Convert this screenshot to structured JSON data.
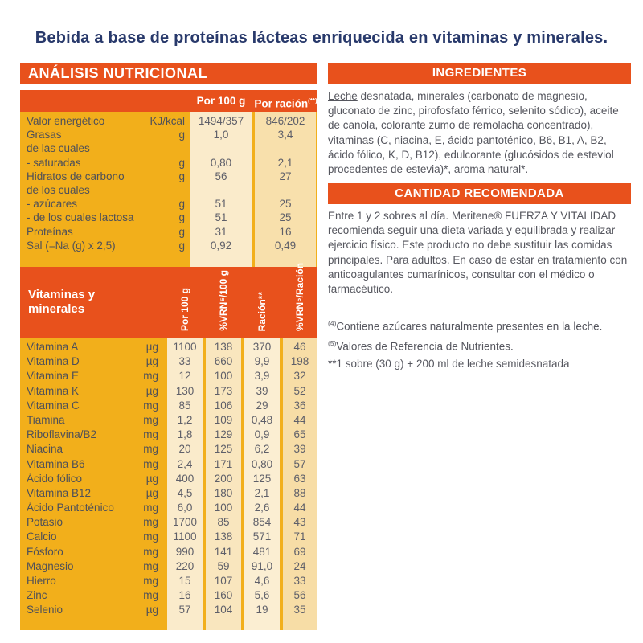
{
  "title": "Bebida a base de proteínas lácteas enriquecida en vitaminas y minerales.",
  "colors": {
    "orange": "#E8511C",
    "yellow": "#F2AF1B",
    "navy": "#28396B",
    "cream": "#FAEBCB",
    "text_gray": "#55565E"
  },
  "analysis": {
    "header": "ANÁLISIS NUTRICIONAL",
    "col_headers": {
      "per100": "Por 100 g",
      "racion": "Por ración",
      "racion_sup": "(**)"
    },
    "rows": [
      {
        "label": "Valor energético",
        "unit": "KJ/kcal",
        "per100": "1494/357",
        "racion": "846/202"
      },
      {
        "label": "Grasas",
        "unit": "g",
        "per100": "1,0",
        "racion": "3,4"
      },
      {
        "label": "de las cuales",
        "unit": "",
        "per100": "",
        "racion": ""
      },
      {
        "label": "- saturadas",
        "unit": "g",
        "per100": "0,80",
        "racion": "2,1"
      },
      {
        "label": "Hidratos de carbono",
        "unit": "g",
        "per100": "56",
        "racion": "27"
      },
      {
        "label": "de los cuales",
        "unit": "",
        "per100": "",
        "racion": ""
      },
      {
        "label": "- azúcares",
        "unit": "g",
        "per100": "51",
        "racion": "25"
      },
      {
        "label": "- de los cuales lactosa",
        "unit": "g",
        "per100": "51",
        "racion": "25"
      },
      {
        "label": "Proteínas",
        "unit": "g",
        "per100": "31",
        "racion": "16"
      },
      {
        "label": "Sal (=Na (g) x 2,5)",
        "unit": "g",
        "per100": "0,92",
        "racion": "0,49"
      }
    ],
    "vitamins_header": {
      "title_line1": "Vitaminas y",
      "title_line2": "minerales",
      "cols": [
        "Por 100 g",
        "%VRN⁵/100 g",
        "Ración**",
        "%VRN⁵/Ración"
      ]
    },
    "vitamin_rows": [
      {
        "label": "Vitamina A",
        "unit": "µg",
        "per100": "1100",
        "vrn100": "138",
        "racion": "370",
        "vrnracion": "46"
      },
      {
        "label": "Vitamina D",
        "unit": "µg",
        "per100": "33",
        "vrn100": "660",
        "racion": "9,9",
        "vrnracion": "198"
      },
      {
        "label": "Vitamina E",
        "unit": "mg",
        "per100": "12",
        "vrn100": "100",
        "racion": "3,9",
        "vrnracion": "32"
      },
      {
        "label": "Vitamina K",
        "unit": "µg",
        "per100": "130",
        "vrn100": "173",
        "racion": "39",
        "vrnracion": "52"
      },
      {
        "label": "Vitamina C",
        "unit": "mg",
        "per100": "85",
        "vrn100": "106",
        "racion": "29",
        "vrnracion": "36"
      },
      {
        "label": "Tiamina",
        "unit": "mg",
        "per100": "1,2",
        "vrn100": "109",
        "racion": "0,48",
        "vrnracion": "44"
      },
      {
        "label": "Riboflavina/B2",
        "unit": "mg",
        "per100": "1,8",
        "vrn100": "129",
        "racion": "0,9",
        "vrnracion": "65"
      },
      {
        "label": "Niacina",
        "unit": "mg",
        "per100": "20",
        "vrn100": "125",
        "racion": "6,2",
        "vrnracion": "39"
      },
      {
        "label": "Vitamina B6",
        "unit": "mg",
        "per100": "2,4",
        "vrn100": "171",
        "racion": "0,80",
        "vrnracion": "57"
      },
      {
        "label": "Ácido fólico",
        "unit": "µg",
        "per100": "400",
        "vrn100": "200",
        "racion": "125",
        "vrnracion": "63"
      },
      {
        "label": "Vitamina B12",
        "unit": "µg",
        "per100": "4,5",
        "vrn100": "180",
        "racion": "2,1",
        "vrnracion": "88"
      },
      {
        "label": "Ácido Pantoténico",
        "unit": "mg",
        "per100": "6,0",
        "vrn100": "100",
        "racion": "2,6",
        "vrnracion": "44"
      },
      {
        "label": "Potasio",
        "unit": "mg",
        "per100": "1700",
        "vrn100": "85",
        "racion": "854",
        "vrnracion": "43"
      },
      {
        "label": "Calcio",
        "unit": "mg",
        "per100": "1100",
        "vrn100": "138",
        "racion": "571",
        "vrnracion": "71"
      },
      {
        "label": "Fósforo",
        "unit": "mg",
        "per100": "990",
        "vrn100": "141",
        "racion": "481",
        "vrnracion": "69"
      },
      {
        "label": "Magnesio",
        "unit": "mg",
        "per100": "220",
        "vrn100": "59",
        "racion": "91,0",
        "vrnracion": "24"
      },
      {
        "label": "Hierro",
        "unit": "mg",
        "per100": "15",
        "vrn100": "107",
        "racion": "4,6",
        "vrnracion": "33"
      },
      {
        "label": "Zinc",
        "unit": "mg",
        "per100": "16",
        "vrn100": "160",
        "racion": "5,6",
        "vrnracion": "56"
      },
      {
        "label": "Selenio",
        "unit": "µg",
        "per100": "57",
        "vrn100": "104",
        "racion": "19",
        "vrnracion": "35"
      }
    ]
  },
  "ingredients": {
    "header": "INGREDIENTES",
    "allergen": "Leche",
    "text": " desnatada, minerales (carbonato de magnesio, gluconato de zinc, pirofosfato férrico, selenito sódico), aceite de canola, colorante zumo de remolacha concentrado), vitaminas (C, niacina, E, ácido pantoténico, B6, B1, A, B2, ácido fólico, K, D, B12), edulcorante (glucósidos de esteviol procedentes de estevia)*, aroma natural*."
  },
  "recommended": {
    "header": "CANTIDAD RECOMENDADA",
    "text": "Entre 1 y 2 sobres al día. Meritene® FUERZA Y VITALIDAD recomienda seguir una dieta variada y equilibrada y realizar ejercicio físico. Este producto no debe sustituir las comidas principales. Para adultos. En caso de estar en tratamiento con anticoagulantes cumarínicos, consultar con el médico o farmacéutico."
  },
  "footnotes": [
    {
      "sup": "(4)",
      "text": "Contiene azúcares naturalmente presentes en la leche."
    },
    {
      "sup": "(5)",
      "text": "Valores de Referencia de Nutrientes."
    },
    {
      "sup": "",
      "text": "**1 sobre (30 g) + 200 ml de leche semidesnatada"
    }
  ]
}
